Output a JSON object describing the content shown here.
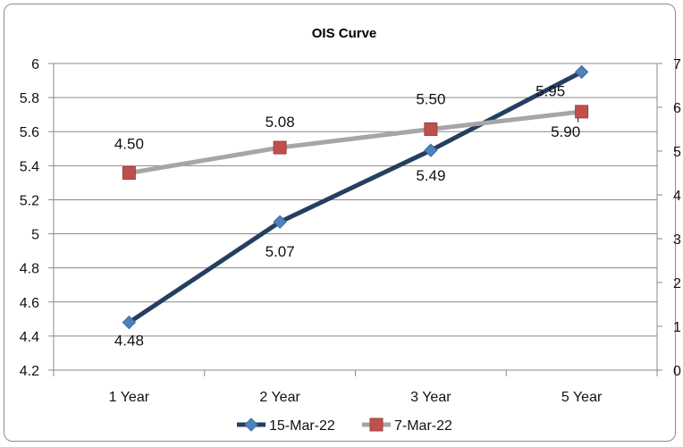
{
  "chart_data": {
    "type": "line",
    "title": "OIS Curve",
    "categories": [
      "1 Year",
      "2 Year",
      "3 Year",
      "5 Year"
    ],
    "y_left": {
      "range": [
        4.2,
        6
      ],
      "ticks": [
        "4.2",
        "4.4",
        "4.6",
        "4.8",
        "5",
        "5.2",
        "5.4",
        "5.6",
        "5.8",
        "6"
      ]
    },
    "y_right": {
      "range": [
        0,
        7
      ],
      "ticks": [
        "0",
        "1",
        "2",
        "3",
        "4",
        "5",
        "6",
        "7"
      ]
    },
    "series": [
      {
        "name": "15-Mar-22",
        "axis": "left",
        "color": "#243f60",
        "marker": "diamond",
        "marker_color": "#4f81bd",
        "values": [
          4.48,
          5.07,
          5.49,
          5.95
        ],
        "labels": [
          "4.48",
          "5.07",
          "5.49",
          "5.95"
        ]
      },
      {
        "name": "7-Mar-22",
        "axis": "right",
        "color": "#a6a6a6",
        "marker": "square",
        "marker_color": "#c0504d",
        "values": [
          4.5,
          5.08,
          5.5,
          5.9
        ],
        "labels": [
          "4.50",
          "5.08",
          "5.50",
          "5.90"
        ]
      }
    ],
    "legend": "bottom",
    "grid": true
  }
}
